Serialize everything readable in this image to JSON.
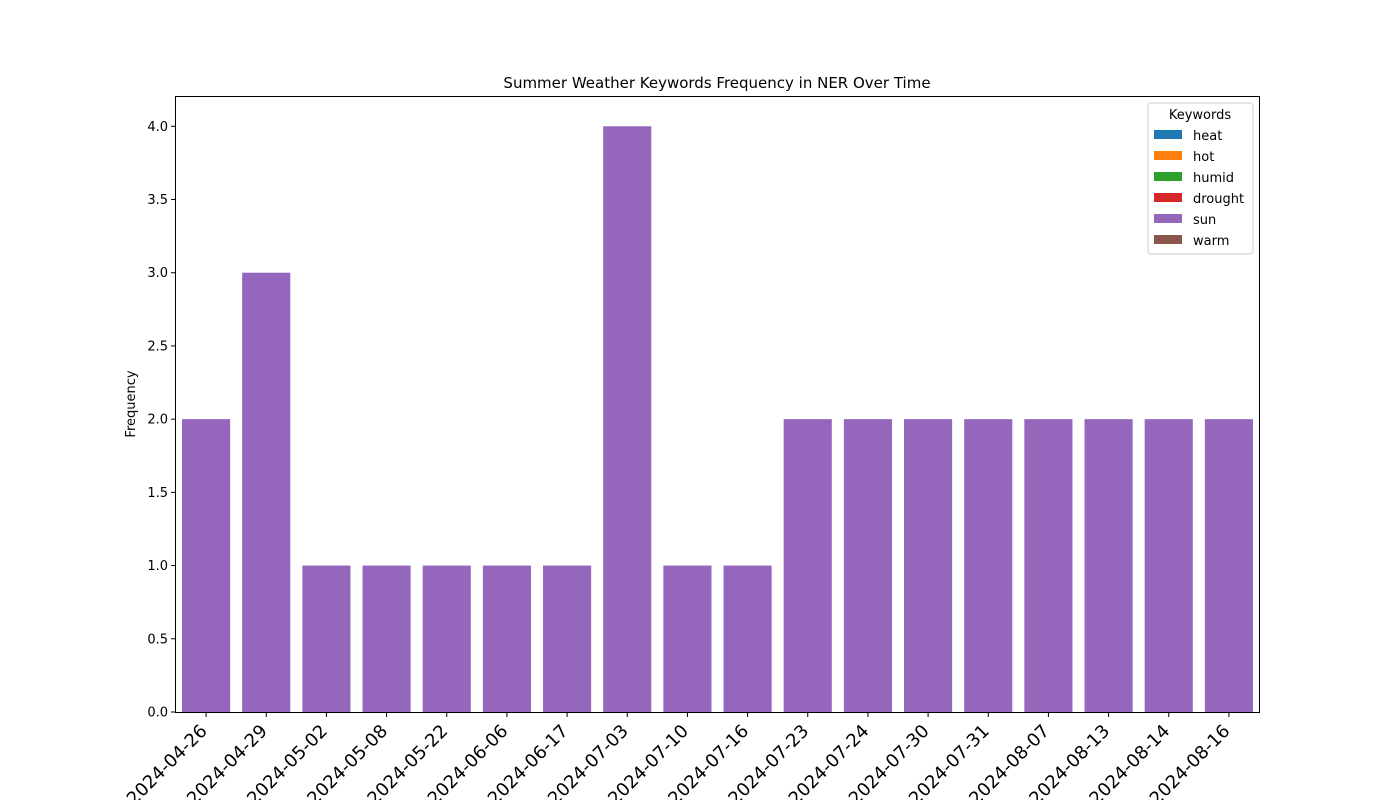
{
  "chart_data": {
    "type": "bar",
    "title": "Summer Weather Keywords Frequency in NER Over Time",
    "xlabel": "",
    "ylabel": "Frequency",
    "categories": [
      "2024-04-26",
      "2024-04-29",
      "2024-05-02",
      "2024-05-08",
      "2024-05-22",
      "2024-06-06",
      "2024-06-17",
      "2024-07-03",
      "2024-07-10",
      "2024-07-16",
      "2024-07-23",
      "2024-07-24",
      "2024-07-30",
      "2024-07-31",
      "2024-08-07",
      "2024-08-13",
      "2024-08-14",
      "2024-08-16"
    ],
    "series": [
      {
        "name": "heat",
        "color": "#1f77b4",
        "values": [
          0,
          0,
          0,
          0,
          0,
          0,
          0,
          0,
          0,
          0,
          0,
          0,
          0,
          0,
          0,
          0,
          0,
          0
        ]
      },
      {
        "name": "hot",
        "color": "#ff7f0e",
        "values": [
          0,
          0,
          0,
          0,
          0,
          0,
          0,
          0,
          0,
          0,
          0,
          0,
          0,
          0,
          0,
          0,
          0,
          0
        ]
      },
      {
        "name": "humid",
        "color": "#2ca02c",
        "values": [
          0,
          0,
          0,
          0,
          0,
          0,
          0,
          0,
          0,
          0,
          0,
          0,
          0,
          0,
          0,
          0,
          0,
          0
        ]
      },
      {
        "name": "drought",
        "color": "#d62728",
        "values": [
          0,
          0,
          0,
          0,
          0,
          0,
          0,
          0,
          0,
          0,
          0,
          0,
          0,
          0,
          0,
          0,
          0,
          0
        ]
      },
      {
        "name": "sun",
        "color": "#9467bd",
        "values": [
          2,
          3,
          1,
          1,
          1,
          1,
          1,
          4,
          1,
          1,
          2,
          2,
          2,
          2,
          2,
          2,
          2,
          2
        ]
      },
      {
        "name": "warm",
        "color": "#8c564b",
        "values": [
          0,
          0,
          0,
          0,
          0,
          0,
          0,
          0,
          0,
          0,
          0,
          0,
          0,
          0,
          0,
          0,
          0,
          0
        ]
      }
    ],
    "ylim": [
      0,
      4.2
    ],
    "yticks": [
      "0.0",
      "0.5",
      "1.0",
      "1.5",
      "2.0",
      "2.5",
      "3.0",
      "3.5",
      "4.0"
    ],
    "legend": {
      "title": "Keywords",
      "placement": "top-right"
    },
    "grid": false
  }
}
